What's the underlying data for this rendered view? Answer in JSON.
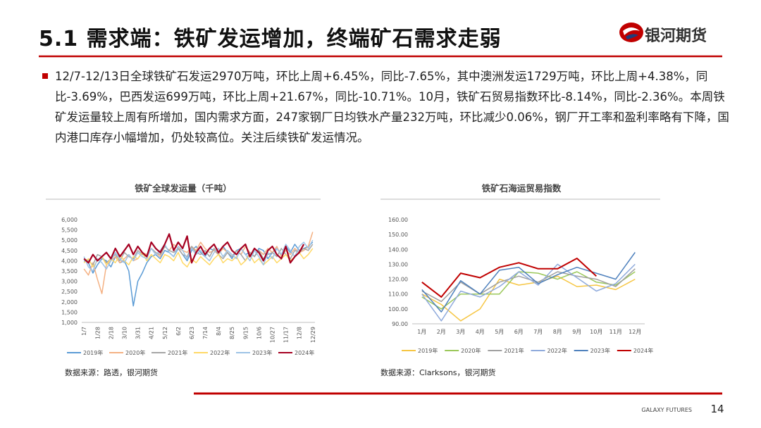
{
  "header": {
    "title": "5.1 需求端：铁矿发运增加，终端矿石需求走弱",
    "logo": "银河期货"
  },
  "paragraph": "12/7-12/13日全球铁矿石发运2970万吨，环比上周+6.45%，同比-7.65%，其中澳洲发运1729万吨，环比上周+4.38%，同比-3.69%，巴西发运699万吨，环比上周+21.67%，同比-10.71%。10月，铁矿石贸易指数环比-8.14%，同比-2.36%。本周铁矿发运量较上周有所增加，国内需求方面，247家钢厂日均铁水产量232万吨，环比减少0.06%，钢厂开工率和盈利率略有下降，国内港口库存小幅增加，仍处较高位。关注后续铁矿发运情况。",
  "chart_data": [
    {
      "type": "line",
      "title": "铁矿全球发运量（千吨）",
      "source": "数据来源：路透，银河期货",
      "categories": [
        "1/7",
        null,
        null,
        "1/28",
        null,
        null,
        "2/18",
        null,
        null,
        "3/10",
        null,
        null,
        "3/31",
        null,
        null,
        "4/21",
        null,
        null,
        "5/12",
        null,
        null,
        "6/2",
        null,
        null,
        "6/23",
        null,
        null,
        "7/14",
        null,
        null,
        "8/4",
        null,
        null,
        "8/25",
        null,
        null,
        "9/15",
        null,
        null,
        "10/6",
        null,
        null,
        "10/27",
        null,
        null,
        "11/17",
        null,
        null,
        "12/8",
        null,
        null,
        "12/29"
      ],
      "ylim": [
        1000,
        6000
      ],
      "yticks": [
        {
          "value": 1000,
          "label": "1,000"
        },
        {
          "value": 1500,
          "label": "1,500"
        },
        {
          "value": 2000,
          "label": "2,000"
        },
        {
          "value": 2500,
          "label": "2,500"
        },
        {
          "value": 3000,
          "label": "3,000"
        },
        {
          "value": 3500,
          "label": "3,500"
        },
        {
          "value": 4000,
          "label": "4,000"
        },
        {
          "value": 4500,
          "label": "4,500"
        },
        {
          "value": 5000,
          "label": "5,000"
        },
        {
          "value": 5500,
          "label": "5,500"
        },
        {
          "value": 6000,
          "label": "6,000"
        }
      ],
      "grid": false,
      "series": [
        {
          "name": "2019年",
          "color": "#5b9bd5",
          "width": 1.5,
          "values": [
            4000,
            3900,
            3400,
            3800,
            4100,
            4000,
            3700,
            4200,
            3900,
            4000,
            3500,
            1800,
            3000,
            3400,
            3900,
            4200,
            4300,
            4100,
            4500,
            4400,
            4200,
            4600,
            4300,
            4000,
            4500,
            4700,
            4400,
            4200,
            4600,
            4500,
            4300,
            4700,
            4400,
            4100,
            4500,
            4600,
            4300,
            4400,
            4200,
            4600,
            4500,
            4100,
            4400,
            4600,
            4300,
            4700,
            4400,
            4800,
            4500,
            4600,
            4700,
            4900
          ]
        },
        {
          "name": "2020年",
          "color": "#f4b183",
          "width": 1.5,
          "values": [
            3600,
            3300,
            3900,
            3100,
            2400,
            3800,
            4000,
            4200,
            3900,
            4100,
            4300,
            4000,
            4100,
            4400,
            4300,
            4600,
            4400,
            4200,
            4700,
            4500,
            4800,
            4600,
            4500,
            4400,
            4700,
            4500,
            4900,
            4600,
            4400,
            4500,
            4300,
            4600,
            4400,
            4200,
            4500,
            4300,
            4700,
            4400,
            4200,
            4500,
            4300,
            4600,
            4400,
            4700,
            4200,
            4500,
            4300,
            4600,
            4400,
            4500,
            4700,
            5400
          ]
        },
        {
          "name": "2021年",
          "color": "#a5a5a5",
          "width": 1.5,
          "values": [
            4100,
            4000,
            3800,
            4300,
            4200,
            3900,
            4100,
            4300,
            4000,
            4400,
            4200,
            4100,
            4500,
            4300,
            4200,
            4600,
            4400,
            4300,
            4700,
            4500,
            4400,
            4600,
            4300,
            4200,
            4700,
            4400,
            4300,
            4500,
            4200,
            4600,
            4300,
            4100,
            4400,
            4200,
            4500,
            4300,
            4000,
            4400,
            4200,
            4500,
            4100,
            4300,
            4400,
            4200,
            4600,
            4300,
            4100,
            4500,
            4400,
            4600,
            4500,
            4800
          ]
        },
        {
          "name": "2022年",
          "color": "#ffd966",
          "width": 1.5,
          "values": [
            3900,
            4100,
            3700,
            4000,
            4200,
            3800,
            4100,
            3900,
            4300,
            4000,
            3800,
            4200,
            4100,
            4400,
            4000,
            4300,
            4100,
            3900,
            4300,
            4200,
            4000,
            4400,
            3900,
            3700,
            4100,
            3900,
            4200,
            4000,
            3800,
            4100,
            4300,
            3900,
            4100,
            4000,
            4200,
            3800,
            4000,
            4300,
            3900,
            4100,
            3800,
            4000,
            4200,
            3900,
            4100,
            4300,
            4000,
            4200,
            4400,
            4100,
            4300,
            4600
          ]
        },
        {
          "name": "2023年",
          "color": "#9dc3e6",
          "width": 1.5,
          "values": [
            4200,
            3700,
            3500,
            4100,
            3900,
            3600,
            4000,
            4400,
            4100,
            3900,
            4300,
            4000,
            4400,
            4200,
            4100,
            4600,
            4300,
            4500,
            4800,
            4400,
            4200,
            4700,
            4500,
            4100,
            4600,
            4300,
            4500,
            4200,
            4000,
            4400,
            4600,
            4200,
            4500,
            4300,
            4100,
            4600,
            4300,
            4000,
            4500,
            4200,
            3800,
            4400,
            4100,
            4600,
            4300,
            4800,
            4500,
            4200,
            4700,
            4900,
            4600,
            5000
          ]
        },
        {
          "name": "2024年",
          "color": "#a50021",
          "width": 2.2,
          "values": [
            4100,
            3900,
            4300,
            4000,
            4200,
            4400,
            4100,
            4600,
            4200,
            4500,
            4800,
            4300,
            4700,
            4400,
            4200,
            4900,
            4600,
            4400,
            4800,
            5300,
            4500,
            4900,
            4600,
            5200,
            3900,
            4400,
            4700,
            4300,
            4600,
            4800,
            4400,
            4700,
            4900,
            4500,
            4300,
            4600,
            4800,
            4200,
            4600,
            4400,
            4000,
            4500,
            4700,
            4300,
            4100,
            4700,
            3900,
            4200,
            4400,
            4800,
            null,
            null
          ]
        }
      ]
    },
    {
      "type": "line",
      "title": "铁矿石海运贸易指数",
      "source": "数据来源：Clarksons，银河期货",
      "categories": [
        "1月",
        "2月",
        "3月",
        "4月",
        "5月",
        "6月",
        "7月",
        "8月",
        "9月",
        "10月",
        "11月",
        "12月"
      ],
      "ylim": [
        90,
        160
      ],
      "yticks": [
        {
          "value": 90,
          "label": "90.00"
        },
        {
          "value": 100,
          "label": "100.00"
        },
        {
          "value": 110,
          "label": "110.00"
        },
        {
          "value": 120,
          "label": "120.00"
        },
        {
          "value": 130,
          "label": "130.00"
        },
        {
          "value": 140,
          "label": "140.00"
        },
        {
          "value": 150,
          "label": "150.00"
        },
        {
          "value": 160,
          "label": "160.00"
        }
      ],
      "grid": false,
      "series": [
        {
          "name": "2019年",
          "color": "#f6c643",
          "width": 1.5,
          "values": [
            110,
            103,
            92,
            100,
            120,
            116,
            118,
            122,
            115,
            116,
            113,
            120
          ]
        },
        {
          "name": "2020年",
          "color": "#9bc85a",
          "width": 1.5,
          "values": [
            108,
            100,
            110,
            110,
            110,
            125,
            124,
            120,
            125,
            118,
            116,
            125
          ]
        },
        {
          "name": "2021年",
          "color": "#a0a0a0",
          "width": 1.5,
          "values": [
            112,
            105,
            118,
            110,
            118,
            122,
            118,
            125,
            122,
            120,
            115,
            127
          ]
        },
        {
          "name": "2022年",
          "color": "#8faadc",
          "width": 1.5,
          "values": [
            110,
            92,
            112,
            108,
            115,
            125,
            116,
            130,
            121,
            112,
            117,
            130
          ]
        },
        {
          "name": "2023年",
          "color": "#4f81bd",
          "width": 1.5,
          "values": [
            113,
            98,
            119,
            110,
            126,
            128,
            117,
            123,
            128,
            124,
            120,
            138
          ]
        },
        {
          "name": "2024年",
          "color": "#c00000",
          "width": 2,
          "values": [
            118,
            108,
            124,
            121,
            128,
            131,
            127,
            127,
            134,
            122,
            null,
            null
          ]
        }
      ]
    }
  ],
  "footer": {
    "brand": "GALAXY FUTURES",
    "page": "14"
  }
}
